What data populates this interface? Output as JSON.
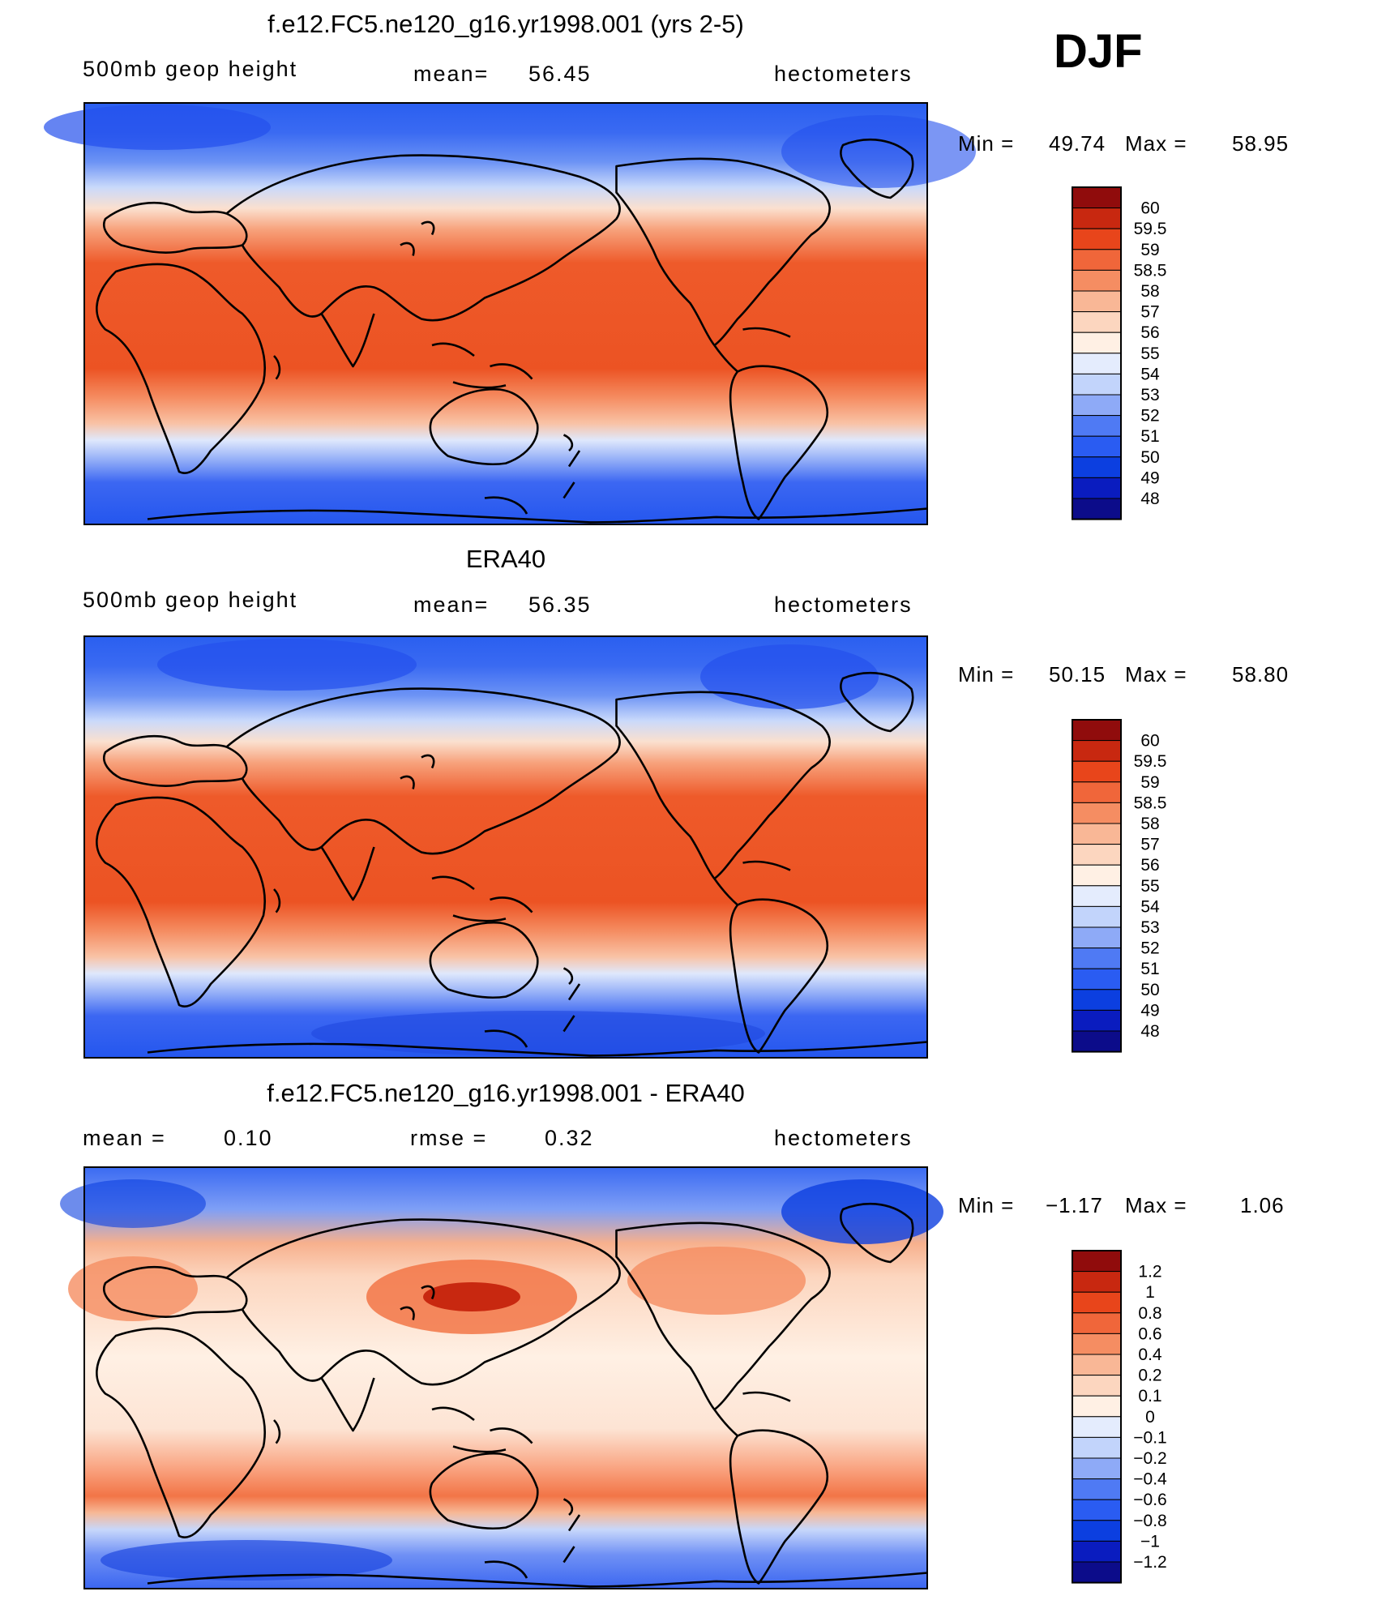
{
  "season": "DJF",
  "colors": {
    "gph": [
      "#0c0c8a",
      "#0a1cbf",
      "#0c3fe0",
      "#2a5cf2",
      "#4f7af4",
      "#8eaaf7",
      "#c2d4fb",
      "#e4ecfd",
      "#fff0e4",
      "#fcd6bf",
      "#f9b796",
      "#f58d62",
      "#f0663a",
      "#e8451b",
      "#c82810",
      "#900c0c"
    ],
    "diff": [
      "#0c0c8a",
      "#0a1cbf",
      "#0c3fe0",
      "#2a5cf2",
      "#4f7af4",
      "#8eaaf7",
      "#c2d4fb",
      "#e4ecfd",
      "#fff0e4",
      "#fcd6bf",
      "#f9b796",
      "#f58d62",
      "#f0663a",
      "#e8451b",
      "#c82810",
      "#900c0c"
    ]
  },
  "panels": [
    {
      "title": "f.e12.FC5.ne120_g16.yr1998.001 (yrs 2-5)",
      "left_label": "500mb geop height",
      "mid_label": "mean=",
      "mid_value": "56.45",
      "units": "hectometers",
      "min_label": "Min =",
      "min_value": "49.74",
      "max_label": "Max =",
      "max_value": "58.95"
    },
    {
      "title": "ERA40",
      "left_label": "500mb geop height",
      "mid_label": "mean=",
      "mid_value": "56.35",
      "units": "hectometers",
      "min_label": "Min =",
      "min_value": "50.15",
      "max_label": "Max =",
      "max_value": "58.80"
    },
    {
      "title": "f.e12.FC5.ne120_g16.yr1998.001 - ERA40",
      "left_label": "mean =",
      "left_value": "0.10",
      "mid_label": "rmse =",
      "mid_value": "0.32",
      "units": "hectometers",
      "min_label": "Min =",
      "min_value": "−1.17",
      "max_label": "Max =",
      "max_value": "1.06"
    }
  ],
  "chart_data": [
    {
      "type": "heatmap",
      "title": "f.e12.FC5.ne120_g16.yr1998.001 (yrs 2-5)",
      "variable": "500mb geop height",
      "units": "hectometers",
      "mean": 56.45,
      "min": 49.74,
      "max": 58.95,
      "levels": [
        48,
        49,
        50,
        51,
        52,
        53,
        54,
        55,
        56,
        57,
        58,
        58.5,
        59,
        59.5,
        60
      ],
      "level_labels": [
        "60",
        "59.5",
        "59",
        "58.5",
        "58",
        "57",
        "56",
        "55",
        "54",
        "53",
        "52",
        "51",
        "50",
        "49",
        "48"
      ]
    },
    {
      "type": "heatmap",
      "title": "ERA40",
      "variable": "500mb geop height",
      "units": "hectometers",
      "mean": 56.35,
      "min": 50.15,
      "max": 58.8,
      "levels": [
        48,
        49,
        50,
        51,
        52,
        53,
        54,
        55,
        56,
        57,
        58,
        58.5,
        59,
        59.5,
        60
      ],
      "level_labels": [
        "60",
        "59.5",
        "59",
        "58.5",
        "58",
        "57",
        "56",
        "55",
        "54",
        "53",
        "52",
        "51",
        "50",
        "49",
        "48"
      ]
    },
    {
      "type": "heatmap",
      "title": "f.e12.FC5.ne120_g16.yr1998.001 - ERA40",
      "variable": "500mb geop height difference",
      "units": "hectometers",
      "mean": 0.1,
      "rmse": 0.32,
      "min": -1.17,
      "max": 1.06,
      "levels": [
        -1.2,
        -1,
        -0.8,
        -0.6,
        -0.4,
        -0.2,
        -0.1,
        0,
        0.1,
        0.2,
        0.4,
        0.6,
        0.8,
        1,
        1.2
      ],
      "level_labels": [
        "1.2",
        "1",
        "0.8",
        "0.6",
        "0.4",
        "0.2",
        "0.1",
        "0",
        "−0.1",
        "−0.2",
        "−0.4",
        "−0.6",
        "−0.8",
        "−1",
        "−1.2"
      ]
    }
  ]
}
